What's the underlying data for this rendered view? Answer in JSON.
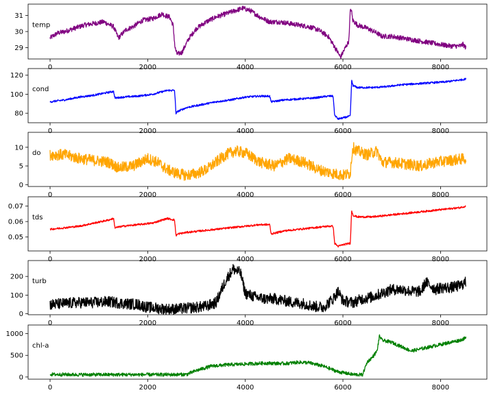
{
  "chart_data": [
    {
      "type": "line",
      "label": "temp",
      "color": "#800080",
      "xlim": [
        -450,
        8950
      ],
      "ylim": [
        28.3,
        31.7
      ],
      "yticks": [
        29,
        30,
        31
      ],
      "xticks": [
        0,
        2000,
        4000,
        6000,
        8000
      ],
      "series": [
        {
          "x": [
            0,
            150,
            300,
            500,
            700,
            900,
            1100,
            1300,
            1400,
            1550,
            1700,
            1900,
            2100,
            2300,
            2350,
            2450,
            2520,
            2560,
            2600,
            2700,
            2850,
            3000,
            3200,
            3400,
            3600,
            3800,
            3950,
            4100,
            4300,
            4500,
            4700,
            4900,
            5100,
            5300,
            5500,
            5700,
            5800,
            5880,
            5950,
            6050,
            6120,
            6150,
            6170,
            6200,
            6300,
            6500,
            6700,
            6800,
            7000,
            7200,
            7400,
            7600,
            7800,
            8000,
            8200,
            8400,
            8460,
            8520
          ],
          "y": [
            29.6,
            29.9,
            30.0,
            30.2,
            30.4,
            30.5,
            30.6,
            30.3,
            29.6,
            30.1,
            30.3,
            30.7,
            30.8,
            31.1,
            31.0,
            30.9,
            30.4,
            29.0,
            28.6,
            28.7,
            29.6,
            30.2,
            30.6,
            30.9,
            31.1,
            31.3,
            31.45,
            31.3,
            30.9,
            30.6,
            30.6,
            30.5,
            30.4,
            30.3,
            30.1,
            29.7,
            29.2,
            28.8,
            28.4,
            29.0,
            29.4,
            31.2,
            31.4,
            30.7,
            30.4,
            30.2,
            29.9,
            29.7,
            29.7,
            29.6,
            29.5,
            29.4,
            29.3,
            29.2,
            29.1,
            29.1,
            29.2,
            29.0
          ],
          "noise": 0.3
        }
      ]
    },
    {
      "type": "line",
      "label": "cond",
      "color": "#0000ff",
      "xlim": [
        -450,
        8950
      ],
      "ylim": [
        70,
        127
      ],
      "yticks": [
        80,
        100,
        120
      ],
      "xticks": [
        0,
        2000,
        4000,
        6000,
        8000
      ],
      "series": [
        {
          "x": [
            0,
            300,
            600,
            900,
            1200,
            1300,
            1330,
            1500,
            1800,
            2100,
            2400,
            2550,
            2580,
            2620,
            2800,
            3100,
            3400,
            3700,
            4000,
            4300,
            4500,
            4530,
            4800,
            5100,
            5400,
            5700,
            5800,
            5830,
            5900,
            6000,
            6150,
            6180,
            6210,
            6300,
            6600,
            6900,
            7200,
            7500,
            7800,
            8100,
            8400,
            8520
          ],
          "y": [
            92,
            94,
            97,
            99,
            102,
            103,
            96,
            97,
            98,
            100,
            104,
            104,
            80,
            82,
            86,
            89,
            92,
            94,
            97,
            98,
            98,
            92,
            94,
            95,
            96,
            98,
            98,
            78,
            74,
            75,
            77,
            114,
            109,
            107,
            107,
            108,
            110,
            111,
            112,
            113,
            115,
            116
          ],
          "noise": 2.0
        }
      ]
    },
    {
      "type": "line",
      "label": "do",
      "color": "#ffa500",
      "xlim": [
        -450,
        8950
      ],
      "ylim": [
        -0.5,
        14
      ],
      "yticks": [
        0,
        5,
        10
      ],
      "xticks": [
        0,
        2000,
        4000,
        6000,
        8000
      ],
      "series": [
        {
          "x": [
            0,
            300,
            600,
            900,
            1200,
            1400,
            1700,
            2000,
            2200,
            2400,
            2600,
            2800,
            3000,
            3200,
            3400,
            3600,
            3800,
            4000,
            4300,
            4600,
            4900,
            5200,
            5500,
            5800,
            6000,
            6150,
            6200,
            6300,
            6500,
            6700,
            6800,
            7000,
            7300,
            7600,
            7900,
            8200,
            8520
          ],
          "y": [
            8,
            8,
            7,
            6.5,
            6,
            4.5,
            5,
            7,
            6,
            4,
            3,
            2.5,
            3,
            4,
            6,
            8,
            9,
            8.5,
            6,
            5,
            7,
            6,
            4,
            3,
            2.5,
            3,
            10,
            9,
            8,
            9,
            6,
            6,
            5.5,
            5,
            6,
            6.5,
            7
          ],
          "noise": 3.0
        }
      ]
    },
    {
      "type": "line",
      "label": "tds",
      "color": "#ff0000",
      "xlim": [
        -450,
        8950
      ],
      "ylim": [
        0.041,
        0.076
      ],
      "yticks": [
        0.05,
        0.06,
        0.07
      ],
      "xticks": [
        0,
        2000,
        4000,
        6000,
        8000
      ],
      "series": [
        {
          "x": [
            0,
            300,
            600,
            900,
            1200,
            1300,
            1330,
            1500,
            1800,
            2100,
            2400,
            2550,
            2580,
            2620,
            2800,
            3100,
            3400,
            3700,
            4000,
            4300,
            4500,
            4530,
            4800,
            5100,
            5400,
            5700,
            5800,
            5830,
            5900,
            6000,
            6150,
            6180,
            6210,
            6300,
            6600,
            6900,
            7200,
            7500,
            7800,
            8100,
            8400,
            8520
          ],
          "y": [
            0.055,
            0.056,
            0.057,
            0.059,
            0.061,
            0.062,
            0.056,
            0.057,
            0.058,
            0.059,
            0.062,
            0.061,
            0.051,
            0.052,
            0.053,
            0.054,
            0.055,
            0.056,
            0.057,
            0.058,
            0.058,
            0.052,
            0.054,
            0.055,
            0.056,
            0.057,
            0.057,
            0.046,
            0.044,
            0.045,
            0.046,
            0.067,
            0.064,
            0.063,
            0.063,
            0.064,
            0.065,
            0.066,
            0.067,
            0.068,
            0.069,
            0.07
          ],
          "noise": 0.0012
        }
      ]
    },
    {
      "type": "line",
      "label": "turb",
      "color": "#000000",
      "xlim": [
        -450,
        8950
      ],
      "ylim": [
        -5,
        285
      ],
      "yticks": [
        0,
        100,
        200
      ],
      "xticks": [
        0,
        2000,
        4000,
        6000,
        8000
      ],
      "series": [
        {
          "x": [
            0,
            300,
            600,
            900,
            1200,
            1500,
            1800,
            2000,
            2200,
            2400,
            2600,
            2800,
            3000,
            3200,
            3400,
            3600,
            3750,
            3900,
            4000,
            4200,
            4400,
            4600,
            4800,
            5000,
            5200,
            5400,
            5600,
            5800,
            5900,
            6000,
            6200,
            6400,
            6600,
            6800,
            7000,
            7200,
            7400,
            7600,
            7700,
            7800,
            7900,
            8000,
            8200,
            8400,
            8520
          ],
          "y": [
            50,
            55,
            60,
            60,
            65,
            55,
            50,
            35,
            30,
            25,
            25,
            30,
            35,
            40,
            60,
            180,
            240,
            220,
            110,
            90,
            80,
            80,
            70,
            60,
            55,
            40,
            35,
            80,
            120,
            70,
            60,
            80,
            90,
            110,
            130,
            130,
            120,
            120,
            170,
            150,
            130,
            140,
            140,
            150,
            170
          ],
          "noise": 60
        }
      ]
    },
    {
      "type": "line",
      "label": "chl-a",
      "color": "#008000",
      "xlim": [
        -450,
        8950
      ],
      "ylim": [
        -50,
        1200
      ],
      "yticks": [
        0,
        500,
        1000
      ],
      "xticks": [
        0,
        2000,
        4000,
        6000,
        8000
      ],
      "series": [
        {
          "x": [
            0,
            500,
            1000,
            1500,
            2000,
            2500,
            2800,
            3000,
            3300,
            3600,
            4000,
            4400,
            4800,
            5100,
            5300,
            5600,
            5900,
            6200,
            6400,
            6450,
            6500,
            6600,
            6700,
            6750,
            6800,
            7000,
            7200,
            7400,
            7600,
            7800,
            8000,
            8200,
            8400,
            8520
          ],
          "y": [
            60,
            55,
            55,
            55,
            55,
            55,
            60,
            150,
            250,
            280,
            300,
            320,
            310,
            340,
            330,
            250,
            120,
            60,
            50,
            200,
            350,
            450,
            600,
            950,
            850,
            800,
            700,
            600,
            650,
            700,
            750,
            800,
            850,
            900
          ],
          "noise": 80
        }
      ]
    }
  ]
}
